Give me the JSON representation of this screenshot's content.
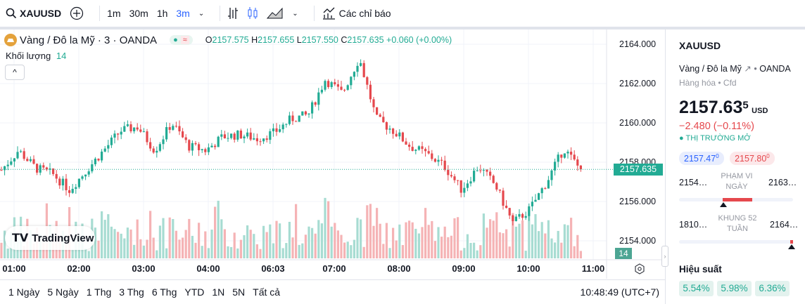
{
  "toolbar": {
    "symbol": "XAUUSD",
    "intervals": [
      "1m",
      "30m",
      "1h",
      "3m"
    ],
    "active_interval": "3m",
    "indicators": "Các chỉ báo"
  },
  "legend": {
    "title": "Vàng / Đô la Mỹ · 3 · OANDA",
    "open_label": "O",
    "open": "2157.575",
    "high_label": "H",
    "high": "2157.655",
    "low_label": "L",
    "low": "2157.550",
    "close_label": "C",
    "close": "2157.635",
    "change": "+0.060 (+0.00%)",
    "volume_label": "Khối lượng",
    "volume": "14"
  },
  "price_axis": [
    "2164.000",
    "2162.000",
    "2160.000",
    "2158.000",
    "2156.000",
    "2154.000"
  ],
  "last_price": "2157.635",
  "last_volume": "14",
  "time_axis": [
    "01:00",
    "02:00",
    "03:00",
    "04:00",
    "06:03",
    "07:00",
    "08:00",
    "09:00",
    "10:00",
    "11:00"
  ],
  "logo": "TradingView",
  "ranges": [
    "1 Ngày",
    "5 Ngày",
    "1 Thg",
    "3 Thg",
    "6 Thg",
    "YTD",
    "1N",
    "5N",
    "Tất cả"
  ],
  "clock": "10:48:49 (UTC+7)",
  "colors": {
    "up": "#22ab94",
    "down": "#e5484d",
    "accent": "#2962ff"
  },
  "chart_data": {
    "type": "candlestick",
    "ylim": [
      2153.2,
      2164.8
    ],
    "last": 2157.635,
    "key_closes": [
      2157.6,
      2158.6,
      2157.7,
      2157.4,
      2156.6,
      2157.6,
      2158.6,
      2159.6,
      2159.8,
      2158.6,
      2160,
      2158.8,
      2158.6,
      2159.3,
      2159.4,
      2159.2,
      2159.5,
      2160.2,
      2160.4,
      2162.2,
      2161.5,
      2163.3,
      2160.2,
      2159.6,
      2158.8,
      2158.4,
      2157.8,
      2156.6,
      2157.8,
      2156.8,
      2154.9,
      2155.6,
      2157,
      2158.7,
      2157.6
    ]
  },
  "panel": {
    "symbol": "XAUUSD",
    "name": "Vàng / Đô la Mỹ",
    "exchange": "OANDA",
    "category": "Hàng hóa",
    "type": "Cfd",
    "price": "2157.63",
    "price_sup": "5",
    "currency": "USD",
    "change": "−2.480 (−0.11%)",
    "status": "THỊ TRƯỜNG MỞ",
    "bid": "2157.47",
    "bid_sup": "0",
    "ask": "2157.80",
    "ask_sup": "0",
    "day_low": "2154…",
    "day_label_1": "PHẠM VI",
    "day_label_2": "NGÀY",
    "day_high": "2163…",
    "wk_low": "1810…",
    "wk_label_1": "KHUNG 52",
    "wk_label_2": "TUẦN",
    "wk_high": "2164…",
    "performance_title": "Hiệu suất",
    "performance": [
      "5.54%",
      "5.98%",
      "6.36%"
    ]
  }
}
